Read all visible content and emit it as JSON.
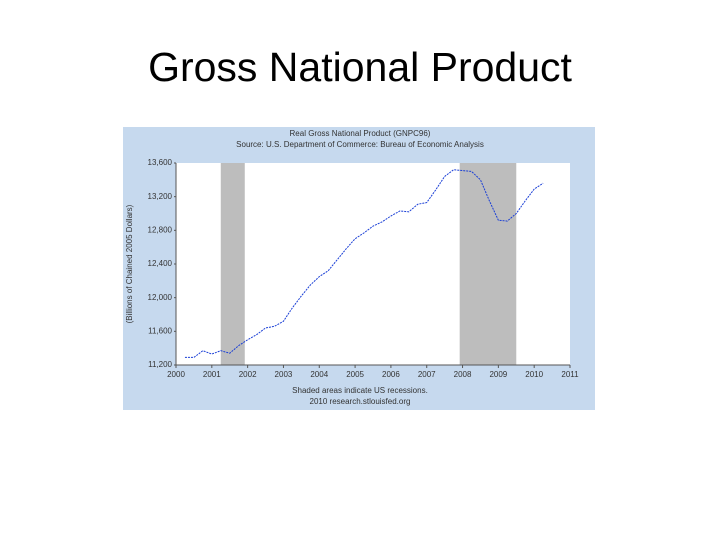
{
  "slide_title": "Gross National Product",
  "chart_data": {
    "type": "line",
    "title": "Real Gross National Product (GNPC96)",
    "subtitle": "Source: U.S. Department of Commerce: Bureau of Economic Analysis",
    "y_label": "(Billions of Chained 2005 Dollars)",
    "footnote": "Shaded areas indicate US recessions.",
    "source": "2010 research.stlouisfed.org",
    "x": [
      2000.25,
      2000.5,
      2000.75,
      2001.0,
      2001.25,
      2001.5,
      2001.75,
      2002.0,
      2002.25,
      2002.5,
      2002.75,
      2003.0,
      2003.25,
      2003.5,
      2003.75,
      2004.0,
      2004.25,
      2004.5,
      2004.75,
      2005.0,
      2005.25,
      2005.5,
      2005.75,
      2006.0,
      2006.25,
      2006.5,
      2006.75,
      2007.0,
      2007.25,
      2007.5,
      2007.75,
      2008.0,
      2008.25,
      2008.5,
      2008.75,
      2009.0,
      2009.25,
      2009.5,
      2009.75,
      2010.0,
      2010.25
    ],
    "series": [
      {
        "color": "#1a3fd6",
        "values": [
          11290,
          11290,
          11370,
          11330,
          11370,
          11340,
          11430,
          11500,
          11560,
          11640,
          11660,
          11720,
          11880,
          12020,
          12150,
          12250,
          12320,
          12450,
          12580,
          12700,
          12770,
          12850,
          12900,
          12970,
          13030,
          13020,
          13110,
          13130,
          13280,
          13440,
          13520,
          13510,
          13500,
          13400,
          13150,
          12920,
          12910,
          13000,
          13150,
          13290,
          13360
        ]
      }
    ],
    "recessions": [
      [
        2001.25,
        2001.92
      ],
      [
        2007.92,
        2009.5
      ]
    ],
    "recession_color": "#bdbdbd",
    "xlim": [
      2000,
      2011
    ],
    "xticks": [
      2000,
      2001,
      2002,
      2003,
      2004,
      2005,
      2006,
      2007,
      2008,
      2009,
      2010,
      2011
    ],
    "ylim": [
      11200,
      13600
    ],
    "yticks": [
      {
        "value": 11200,
        "label": "11,200"
      },
      {
        "value": 11600,
        "label": "11,600"
      },
      {
        "value": 12000,
        "label": "12,000"
      },
      {
        "value": 12400,
        "label": "12,400"
      },
      {
        "value": 12800,
        "label": "12,800"
      },
      {
        "value": 13200,
        "label": "13,200"
      },
      {
        "value": 13600,
        "label": "13,600"
      }
    ],
    "grid": false
  }
}
